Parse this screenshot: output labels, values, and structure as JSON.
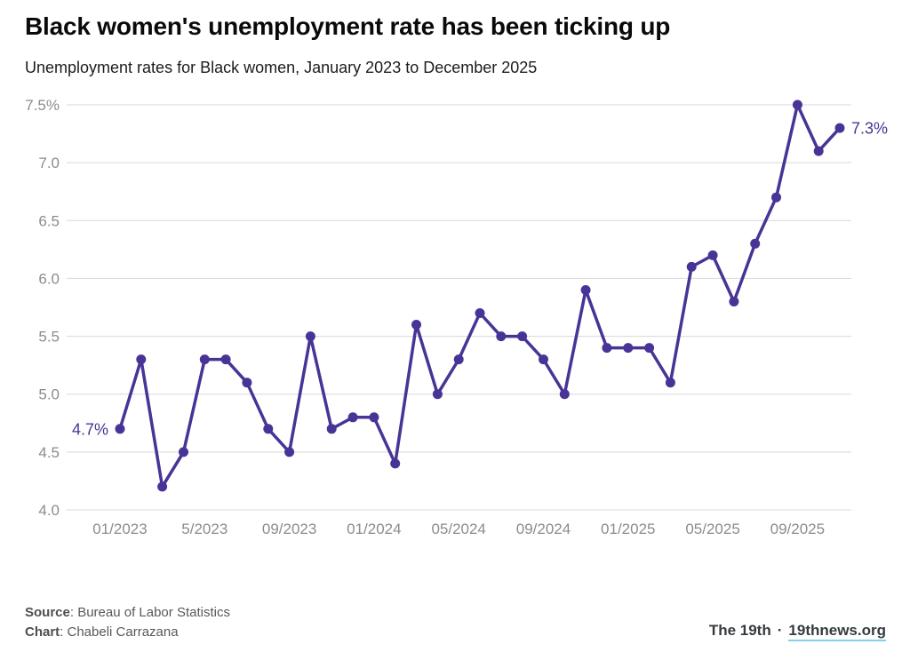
{
  "header": {
    "title": "Black women's unemployment rate has been ticking up",
    "subtitle": "Unemployment rates for Black women, January 2023 to December 2025"
  },
  "chart_data": {
    "type": "line",
    "title": "Black women's unemployment rate has been ticking up",
    "subtitle": "Unemployment rates for Black women, January 2023 to December 2025",
    "unit": "%",
    "x": [
      "01/2023",
      "02/2023",
      "03/2023",
      "04/2023",
      "05/2023",
      "06/2023",
      "07/2023",
      "08/2023",
      "09/2023",
      "10/2023",
      "11/2023",
      "12/2023",
      "01/2024",
      "02/2024",
      "03/2024",
      "04/2024",
      "05/2024",
      "06/2024",
      "07/2024",
      "08/2024",
      "09/2024",
      "10/2024",
      "11/2024",
      "12/2024",
      "01/2025",
      "02/2025",
      "03/2025",
      "04/2025",
      "05/2025",
      "06/2025",
      "07/2025",
      "08/2025",
      "09/2025",
      "11/2025",
      "12/2025"
    ],
    "values": [
      4.7,
      5.3,
      4.2,
      4.5,
      5.3,
      5.3,
      5.1,
      4.7,
      4.5,
      5.5,
      4.7,
      4.8,
      4.8,
      4.4,
      5.6,
      5.0,
      5.3,
      5.7,
      5.5,
      5.5,
      5.3,
      5.0,
      5.9,
      5.4,
      5.4,
      5.4,
      5.1,
      6.1,
      6.2,
      5.8,
      6.3,
      6.7,
      7.5,
      7.1,
      7.3
    ],
    "x_tick_indices": [
      0,
      4,
      8,
      12,
      16,
      20,
      24,
      28,
      32
    ],
    "x_tick_labels": [
      "01/2023",
      "5/2023",
      "09/2023",
      "01/2024",
      "05/2024",
      "09/2024",
      "01/2025",
      "05/2025",
      "09/2025"
    ],
    "y_ticks": [
      4.0,
      4.5,
      5.0,
      5.5,
      6.0,
      6.5,
      7.0,
      7.5
    ],
    "y_tick_labels": [
      "4.0",
      "4.5",
      "5.0",
      "5.5",
      "6.0",
      "6.5",
      "7.0",
      "7.5%"
    ],
    "ylim": [
      4.0,
      7.5
    ],
    "grid": "horizontal",
    "legend": "none",
    "line_color": "#483496",
    "annotations": [
      {
        "index": 0,
        "text": "4.7%",
        "position": "left"
      },
      {
        "index": 34,
        "text": "7.3%",
        "position": "right"
      }
    ]
  },
  "footer": {
    "source_label": "Source",
    "source_value": ": Bureau of Labor Statistics",
    "chart_label": "Chart",
    "chart_value": ": Chabeli Carrazana",
    "brand": "The 19th",
    "separator": "·",
    "site_link": "19thnews.org"
  },
  "colors": {
    "line": "#483496",
    "annotation": "#483496",
    "grid": "#d8d8d8",
    "axis_text": "#8c8c8c",
    "link_underline": "#7ed3e8"
  }
}
